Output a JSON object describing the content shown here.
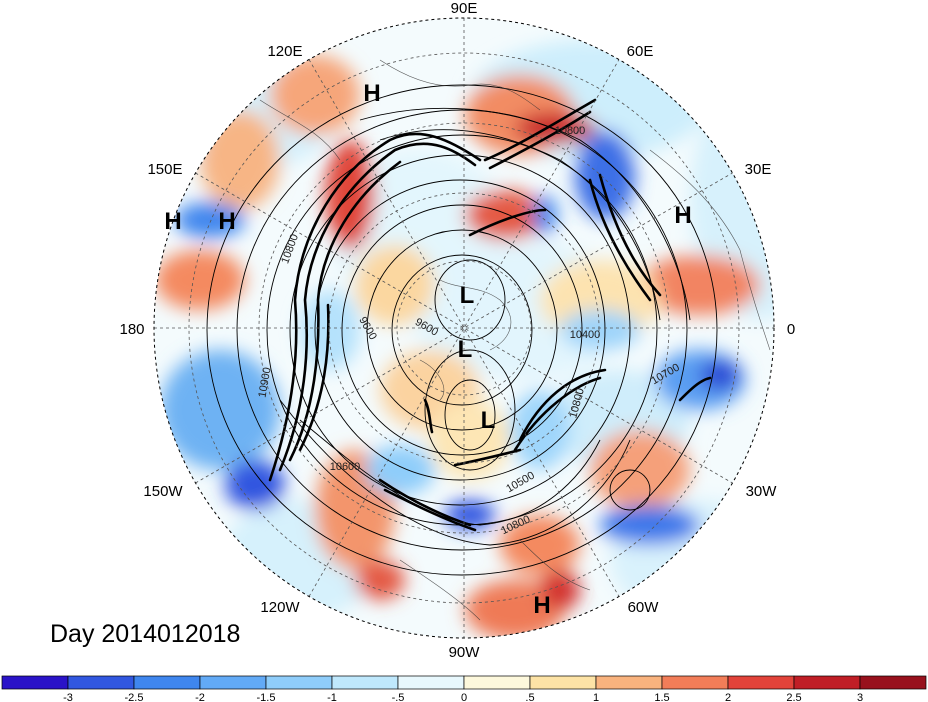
{
  "title": "Day 2014012018",
  "longitude_labels": [
    {
      "id": "lon-90e",
      "text": "90E"
    },
    {
      "id": "lon-60e",
      "text": "60E"
    },
    {
      "id": "lon-120e",
      "text": "120E"
    },
    {
      "id": "lon-30e",
      "text": "30E"
    },
    {
      "id": "lon-150e",
      "text": "150E"
    },
    {
      "id": "lon-180",
      "text": "180"
    },
    {
      "id": "lon-0",
      "text": "0"
    },
    {
      "id": "lon-150w",
      "text": "150W"
    },
    {
      "id": "lon-30w",
      "text": "30W"
    },
    {
      "id": "lon-120w",
      "text": "120W"
    },
    {
      "id": "lon-60w",
      "text": "60W"
    },
    {
      "id": "lon-90w",
      "text": "90W"
    }
  ],
  "pressure_centers": [
    {
      "id": "h-asia",
      "text": "H"
    },
    {
      "id": "h-pacific-west",
      "text": "H"
    },
    {
      "id": "h-pacific-east",
      "text": "H"
    },
    {
      "id": "h-europe",
      "text": "H"
    },
    {
      "id": "h-atlantic",
      "text": "H"
    },
    {
      "id": "l-arctic-1",
      "text": "L"
    },
    {
      "id": "l-arctic-2",
      "text": "L"
    },
    {
      "id": "l-canada",
      "text": "L"
    }
  ],
  "contour_labels": [
    {
      "id": "c-10800-north",
      "text": "10800"
    },
    {
      "id": "c-10800-west",
      "text": "10800"
    },
    {
      "id": "c-10900",
      "text": "10900"
    },
    {
      "id": "c-9600-a",
      "text": "9600"
    },
    {
      "id": "c-9600-b",
      "text": "9600"
    },
    {
      "id": "c-10400",
      "text": "10400"
    },
    {
      "id": "c-10700",
      "text": "10700"
    },
    {
      "id": "c-10600",
      "text": "10600"
    },
    {
      "id": "c-10500",
      "text": "10500"
    },
    {
      "id": "c-10800-south",
      "text": "10800"
    },
    {
      "id": "c-10800-east",
      "text": "10800"
    }
  ],
  "colorbar": {
    "ticks": [
      "-3",
      "-2.5",
      "-2",
      "-1.5",
      "-1",
      "-.5",
      "0",
      ".5",
      "1",
      "1.5",
      "2",
      "2.5",
      "3"
    ],
    "colors": [
      "#2a13c8",
      "#3157e0",
      "#3f86ee",
      "#62aaf6",
      "#8fcdfa",
      "#bfe8fc",
      "#e8f8fd",
      "#fdf8dc",
      "#fde3a6",
      "#f9b37e",
      "#f27d58",
      "#e2433a",
      "#c01e26",
      "#98111d"
    ]
  },
  "map_colors": {
    "strong_cold": "#2a13c8",
    "cold": "#3f86ee",
    "cool": "#8fcdfa",
    "neutral": "#e8f8fd",
    "warm": "#fde3a6",
    "hot": "#f27d58",
    "strong_hot": "#c01e26"
  }
}
